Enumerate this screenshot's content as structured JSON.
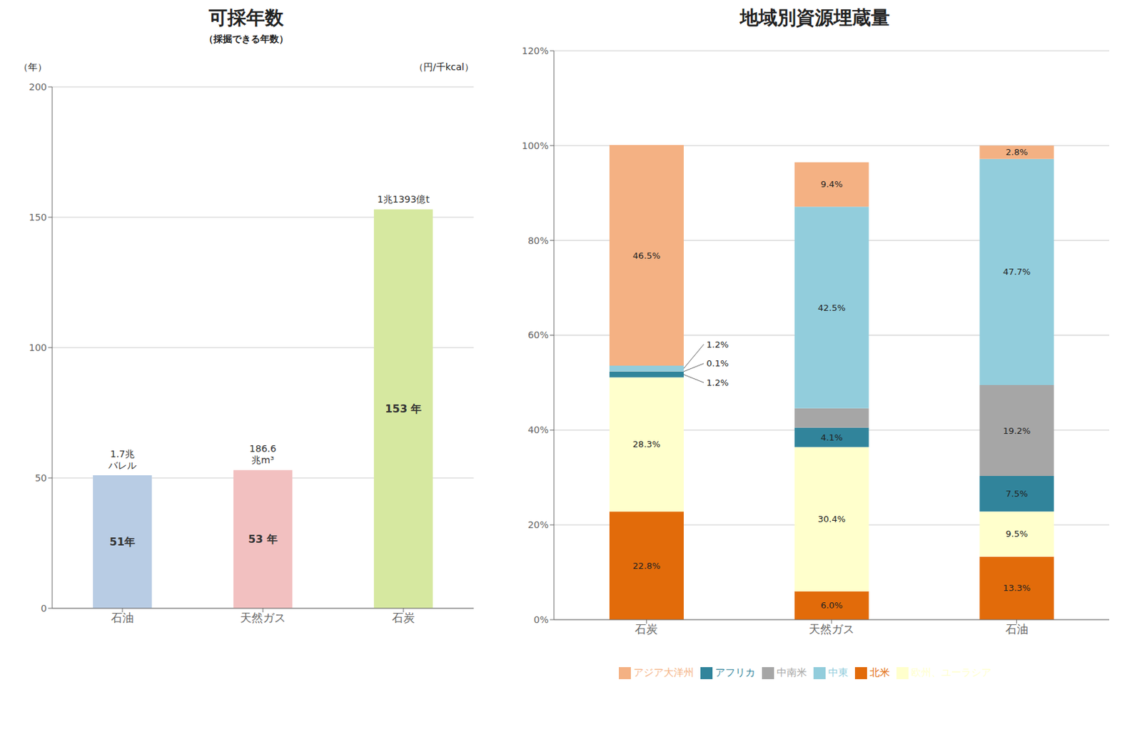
{
  "chart_data": [
    {
      "type": "bar",
      "title": "可採年数",
      "subtitle": "（採掘できる年数）",
      "ylabel": "（年）",
      "ylabel_right": "（円/千kcal）",
      "categories": [
        "石油",
        "天然ガス",
        "石炭"
      ],
      "values": [
        51,
        53,
        153
      ],
      "value_labels": [
        "51年",
        "53 年",
        "153 年"
      ],
      "annotations": [
        "1.7兆\nバレル",
        "186.6\n兆m³",
        "1兆1393億t"
      ],
      "colors": [
        "#b8cce4",
        "#f2c0c0",
        "#d6e8a0"
      ],
      "ylim": [
        0,
        200
      ],
      "yticks": [
        0,
        50,
        100,
        150,
        200
      ],
      "grid": true
    },
    {
      "type": "bar",
      "stacked": true,
      "title": "地域別資源埋蔵量",
      "categories": [
        "石炭",
        "天然ガス",
        "石油"
      ],
      "series": [
        {
          "name": "北米",
          "color": "#e26b0a",
          "values": [
            22.8,
            6.0,
            13.3
          ],
          "value_labels": [
            "22.8%",
            "6.0%",
            "13.3%"
          ]
        },
        {
          "name": "欧州、ユーラシア",
          "color": "#ffffcc",
          "values": [
            28.3,
            30.4,
            9.5
          ],
          "value_labels": [
            "28.3%",
            "30.4%",
            "9.5%"
          ]
        },
        {
          "name": "アフリカ",
          "color": "#31849b",
          "values": [
            1.2,
            4.1,
            7.5
          ],
          "value_labels": [
            "1.2%",
            "4.1%",
            "7.5%"
          ]
        },
        {
          "name": "中南米",
          "color": "#a6a6a6",
          "values": [
            0.1,
            4.1,
            19.2
          ],
          "value_labels": [
            "0.1%",
            null,
            "19.2%"
          ]
        },
        {
          "name": "中東",
          "color": "#92cddc",
          "values": [
            1.2,
            42.5,
            47.7
          ],
          "value_labels": [
            "1.2%",
            "42.5%",
            "47.7%"
          ]
        },
        {
          "name": "アジア大洋州",
          "color": "#f4b183",
          "values": [
            46.5,
            9.4,
            2.8
          ],
          "value_labels": [
            "46.5%",
            "9.4%",
            "2.8%"
          ]
        }
      ],
      "ylim": [
        0,
        120
      ],
      "yticks": [
        {
          "value": 0,
          "label": "0%"
        },
        {
          "value": 20,
          "label": "20%"
        },
        {
          "value": 40,
          "label": "40%"
        },
        {
          "value": 60,
          "label": "60%"
        },
        {
          "value": 80,
          "label": "80%"
        },
        {
          "value": 100,
          "label": "100%"
        },
        {
          "value": 120,
          "label": "120%"
        }
      ],
      "grid": true,
      "legend": "bottom"
    }
  ]
}
